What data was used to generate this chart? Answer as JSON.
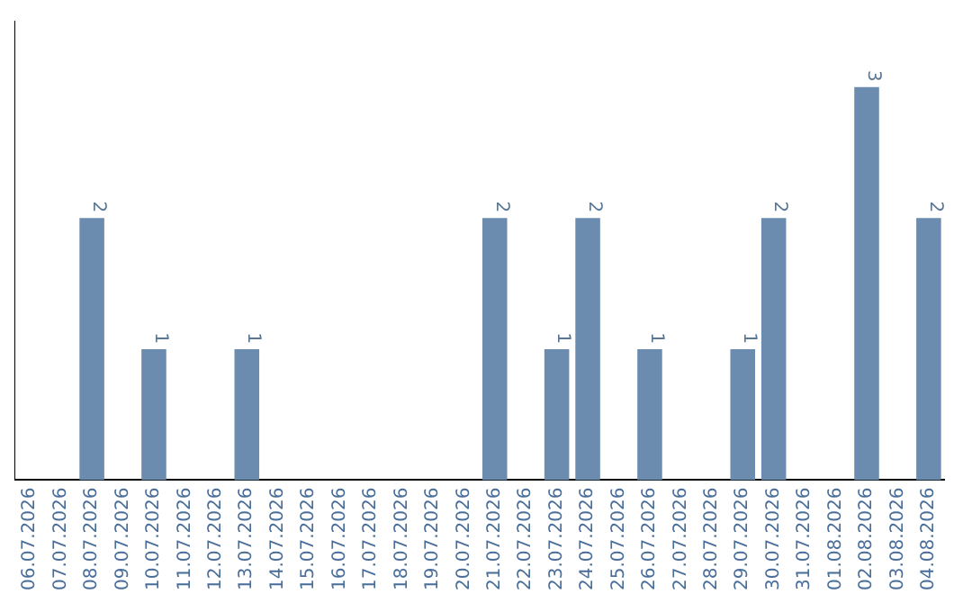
{
  "chart_data": {
    "type": "bar",
    "categories": [
      "06.07.2026",
      "07.07.2026",
      "08.07.2026",
      "09.07.2026",
      "10.07.2026",
      "11.07.2026",
      "12.07.2026",
      "13.07.2026",
      "14.07.2026",
      "15.07.2026",
      "16.07.2026",
      "17.07.2026",
      "18.07.2026",
      "19.07.2026",
      "20.07.2026",
      "21.07.2026",
      "22.07.2026",
      "23.07.2026",
      "24.07.2026",
      "25.07.2026",
      "26.07.2026",
      "27.07.2026",
      "28.07.2026",
      "29.07.2026",
      "30.07.2026",
      "31.07.2026",
      "01.08.2026",
      "02.08.2026",
      "03.08.2026",
      "04.08.2026"
    ],
    "values": [
      0,
      0,
      2,
      0,
      1,
      0,
      0,
      1,
      0,
      0,
      0,
      0,
      0,
      0,
      0,
      2,
      0,
      1,
      2,
      0,
      1,
      0,
      0,
      1,
      2,
      0,
      0,
      3,
      0,
      2
    ],
    "value_labels": [
      null,
      null,
      "2",
      null,
      "1",
      null,
      null,
      "1",
      null,
      null,
      null,
      null,
      null,
      null,
      null,
      "2",
      null,
      "1",
      "2",
      null,
      "1",
      null,
      null,
      "1",
      "2",
      null,
      null,
      "3",
      null,
      "2"
    ],
    "color": "#6b8cae",
    "grid": false,
    "tick_labels": "x",
    "legend": false
  }
}
